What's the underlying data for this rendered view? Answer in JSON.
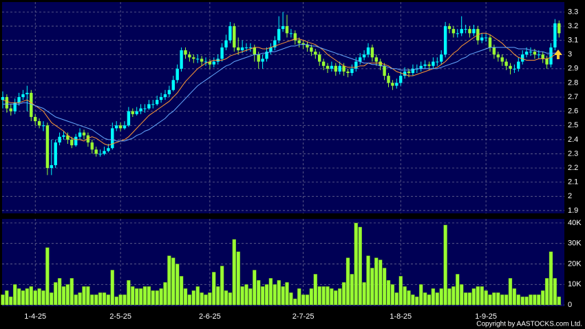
{
  "chart_data": [
    {
      "type": "candlestick",
      "up_color": "#00ffff",
      "down_color": "#99ff33",
      "open": [
        2.68,
        2.7,
        2.62,
        2.6,
        2.66,
        2.7,
        2.72,
        2.73,
        2.56,
        2.53,
        2.5,
        2.5,
        2.2,
        2.22,
        2.38,
        2.42,
        2.43,
        2.4,
        2.36,
        2.42,
        2.45,
        2.43,
        2.38,
        2.33,
        2.3,
        2.3,
        2.32,
        2.34,
        2.48,
        2.5,
        2.48,
        2.5,
        2.6,
        2.58,
        2.6,
        2.62,
        2.62,
        2.65,
        2.65,
        2.68,
        2.7,
        2.72,
        2.75,
        2.82,
        2.9,
        3.03,
        3.0,
        2.98,
        2.97,
        2.97,
        2.95,
        2.95,
        2.93,
        2.95,
        2.97,
        3.05,
        3.1,
        3.2,
        3.05,
        3.03,
        3.05,
        3.05,
        3.05,
        3.0,
        2.95,
        2.97,
        3.02,
        3.05,
        3.1,
        3.18,
        3.2,
        3.15,
        3.15,
        3.1,
        3.08,
        3.07,
        3.05,
        3.02,
        3.0,
        2.95,
        2.92,
        2.9,
        2.92,
        2.88,
        2.92,
        2.88,
        2.87,
        2.9,
        2.95,
        2.98,
        3.0,
        3.05,
        2.98,
        2.95,
        2.92,
        2.85,
        2.8,
        2.78,
        2.8,
        2.85,
        2.88,
        2.87,
        2.9,
        2.9,
        2.92,
        2.93,
        2.92,
        2.95,
        2.95,
        3.0,
        3.2,
        3.18,
        3.15,
        3.15,
        3.18,
        3.18,
        3.15,
        3.18,
        3.1,
        3.12,
        3.12,
        3.05,
        3.0,
        2.98,
        2.95,
        2.92,
        2.9,
        2.9,
        2.95,
        3.0,
        3.02,
        3.02,
        3.0,
        3.0,
        2.97,
        2.93,
        3.05,
        3.22
      ],
      "high": [
        2.74,
        2.72,
        2.65,
        2.69,
        2.73,
        2.75,
        2.78,
        2.75,
        2.58,
        2.55,
        2.53,
        2.52,
        2.4,
        2.4,
        2.45,
        2.46,
        2.45,
        2.42,
        2.44,
        2.48,
        2.47,
        2.45,
        2.4,
        2.35,
        2.33,
        2.35,
        2.37,
        2.52,
        2.53,
        2.52,
        2.53,
        2.63,
        2.62,
        2.63,
        2.65,
        2.65,
        2.68,
        2.68,
        2.71,
        2.73,
        2.75,
        2.78,
        2.85,
        2.93,
        3.05,
        3.05,
        3.02,
        3.0,
        3.0,
        2.99,
        2.98,
        2.97,
        2.98,
        3.0,
        3.08,
        3.14,
        3.23,
        3.22,
        3.12,
        3.1,
        3.08,
        3.08,
        3.07,
        3.02,
        3.0,
        3.05,
        3.08,
        3.13,
        3.27,
        3.3,
        3.28,
        3.18,
        3.17,
        3.12,
        3.1,
        3.09,
        3.07,
        3.04,
        3.02,
        2.97,
        2.94,
        2.95,
        2.94,
        2.95,
        2.94,
        2.9,
        2.93,
        2.98,
        3.01,
        3.03,
        3.08,
        3.07,
        3.0,
        2.97,
        2.94,
        2.87,
        2.82,
        2.83,
        2.88,
        2.91,
        2.9,
        2.93,
        2.93,
        2.95,
        2.96,
        2.95,
        2.98,
        2.98,
        3.03,
        3.23,
        3.22,
        3.2,
        3.18,
        3.27,
        3.21,
        3.2,
        3.21,
        3.2,
        3.15,
        3.15,
        3.14,
        3.07,
        3.02,
        3.0,
        2.97,
        2.94,
        2.93,
        2.98,
        3.03,
        3.05,
        3.05,
        3.04,
        3.03,
        3.02,
        2.99,
        3.08,
        3.25,
        3.24
      ],
      "low": [
        2.62,
        2.59,
        2.57,
        2.58,
        2.64,
        2.68,
        2.6,
        2.53,
        2.5,
        2.48,
        2.46,
        2.15,
        2.15,
        2.2,
        2.36,
        2.4,
        2.37,
        2.34,
        2.35,
        2.4,
        2.4,
        2.35,
        2.3,
        2.28,
        2.28,
        2.29,
        2.31,
        2.33,
        2.46,
        2.46,
        2.47,
        2.49,
        2.56,
        2.57,
        2.58,
        2.59,
        2.61,
        2.62,
        2.64,
        2.66,
        2.68,
        2.7,
        2.74,
        2.8,
        2.88,
        2.97,
        2.95,
        2.94,
        2.94,
        2.92,
        2.92,
        2.9,
        2.91,
        2.93,
        2.95,
        3.03,
        3.08,
        3.02,
        3.0,
        3.01,
        3.02,
        3.02,
        2.95,
        2.9,
        2.9,
        2.95,
        3.0,
        3.03,
        3.08,
        3.16,
        3.12,
        3.12,
        3.07,
        3.05,
        3.04,
        3.02,
        2.99,
        2.97,
        2.92,
        2.89,
        2.87,
        2.88,
        2.85,
        2.86,
        2.85,
        2.84,
        2.85,
        2.88,
        2.93,
        2.96,
        2.98,
        2.95,
        2.92,
        2.89,
        2.82,
        2.77,
        2.75,
        2.76,
        2.78,
        2.83,
        2.84,
        2.85,
        2.87,
        2.88,
        2.9,
        2.89,
        2.9,
        2.92,
        2.93,
        2.98,
        3.15,
        3.12,
        3.12,
        3.13,
        3.15,
        3.12,
        3.13,
        3.07,
        3.08,
        3.09,
        3.02,
        2.97,
        2.95,
        2.92,
        2.89,
        2.86,
        2.87,
        2.88,
        2.93,
        2.98,
        2.99,
        2.97,
        2.97,
        2.94,
        2.9,
        2.91,
        3.03,
        3.12
      ],
      "close": [
        2.7,
        2.62,
        2.6,
        2.66,
        2.7,
        2.72,
        2.73,
        2.56,
        2.53,
        2.5,
        2.5,
        2.2,
        2.22,
        2.38,
        2.42,
        2.43,
        2.4,
        2.36,
        2.42,
        2.45,
        2.43,
        2.38,
        2.33,
        2.3,
        2.3,
        2.32,
        2.34,
        2.48,
        2.5,
        2.48,
        2.5,
        2.6,
        2.58,
        2.6,
        2.62,
        2.62,
        2.65,
        2.65,
        2.68,
        2.7,
        2.72,
        2.75,
        2.82,
        2.9,
        3.03,
        3.0,
        2.98,
        2.97,
        2.97,
        2.95,
        2.95,
        2.93,
        2.95,
        2.97,
        3.05,
        3.1,
        3.2,
        3.05,
        3.03,
        3.05,
        3.05,
        3.05,
        3.0,
        2.95,
        2.97,
        3.02,
        3.05,
        3.1,
        3.18,
        3.2,
        3.15,
        3.15,
        3.1,
        3.08,
        3.07,
        3.05,
        3.02,
        3.0,
        2.95,
        2.92,
        2.9,
        2.92,
        2.88,
        2.92,
        2.88,
        2.87,
        2.9,
        2.95,
        2.98,
        3.0,
        3.05,
        2.98,
        2.95,
        2.92,
        2.85,
        2.8,
        2.78,
        2.8,
        2.85,
        2.88,
        2.87,
        2.9,
        2.9,
        2.92,
        2.93,
        2.92,
        2.95,
        2.95,
        3.0,
        3.2,
        3.18,
        3.15,
        3.15,
        3.18,
        3.18,
        3.15,
        3.18,
        3.1,
        3.12,
        3.12,
        3.05,
        3.0,
        2.98,
        2.95,
        2.92,
        2.9,
        2.9,
        2.95,
        3.0,
        3.02,
        3.02,
        3.0,
        3.0,
        2.97,
        2.93,
        3.05,
        3.22,
        3.15
      ],
      "series": [
        {
          "color": "#ff9933",
          "values": [
            2.68,
            2.67,
            2.66,
            2.66,
            2.66,
            2.67,
            2.68,
            2.66,
            2.64,
            2.62,
            2.6,
            2.56,
            2.52,
            2.5,
            2.48,
            2.46,
            2.43,
            2.41,
            2.4,
            2.4,
            2.39,
            2.41,
            2.42,
            2.41,
            2.39,
            2.37,
            2.36,
            2.37,
            2.38,
            2.39,
            2.4,
            2.42,
            2.45,
            2.48,
            2.51,
            2.54,
            2.57,
            2.59,
            2.61,
            2.63,
            2.65,
            2.67,
            2.7,
            2.73,
            2.77,
            2.81,
            2.84,
            2.87,
            2.9,
            2.92,
            2.94,
            2.95,
            2.96,
            2.96,
            2.96,
            2.97,
            2.99,
            3.0,
            3.01,
            3.02,
            3.03,
            3.04,
            3.05,
            3.05,
            3.04,
            3.04,
            3.05,
            3.06,
            3.07,
            3.08,
            3.09,
            3.1,
            3.11,
            3.11,
            3.1,
            3.09,
            3.08,
            3.07,
            3.05,
            3.03,
            3.0,
            2.98,
            2.96,
            2.94,
            2.92,
            2.91,
            2.91,
            2.91,
            2.92,
            2.92,
            2.94,
            2.94,
            2.94,
            2.94,
            2.93,
            2.92,
            2.9,
            2.88,
            2.87,
            2.86,
            2.85,
            2.85,
            2.86,
            2.87,
            2.88,
            2.89,
            2.9,
            2.91,
            2.93,
            2.95,
            2.98,
            3.01,
            3.03,
            3.06,
            3.08,
            3.1,
            3.12,
            3.14,
            3.15,
            3.15,
            3.14,
            3.12,
            3.1,
            3.08,
            3.05,
            3.03,
            3.0,
            2.98,
            2.97,
            2.96,
            2.96,
            2.96,
            2.97,
            2.97,
            2.97,
            2.98,
            3.0,
            3.01
          ]
        },
        {
          "color": "#66aaff",
          "values": [
            2.65,
            2.65,
            2.65,
            2.65,
            2.65,
            2.66,
            2.66,
            2.65,
            2.64,
            2.63,
            2.62,
            2.6,
            2.58,
            2.56,
            2.55,
            2.54,
            2.53,
            2.52,
            2.51,
            2.5,
            2.49,
            2.48,
            2.47,
            2.45,
            2.43,
            2.41,
            2.4,
            2.4,
            2.39,
            2.39,
            2.39,
            2.4,
            2.41,
            2.43,
            2.44,
            2.46,
            2.47,
            2.49,
            2.51,
            2.53,
            2.55,
            2.58,
            2.6,
            2.63,
            2.66,
            2.69,
            2.72,
            2.75,
            2.78,
            2.8,
            2.82,
            2.84,
            2.86,
            2.88,
            2.9,
            2.92,
            2.93,
            2.95,
            2.96,
            2.97,
            2.98,
            2.99,
            3.0,
            3.0,
            3.01,
            3.01,
            3.02,
            3.02,
            3.03,
            3.04,
            3.05,
            3.06,
            3.06,
            3.07,
            3.07,
            3.07,
            3.06,
            3.06,
            3.05,
            3.04,
            3.03,
            3.02,
            3.01,
            3.0,
            2.99,
            2.98,
            2.97,
            2.96,
            2.95,
            2.94,
            2.94,
            2.93,
            2.93,
            2.92,
            2.92,
            2.91,
            2.9,
            2.9,
            2.89,
            2.89,
            2.89,
            2.89,
            2.9,
            2.9,
            2.9,
            2.9,
            2.9,
            2.9,
            2.91,
            2.92,
            2.93,
            2.94,
            2.95,
            2.97,
            2.98,
            3.0,
            3.01,
            3.02,
            3.03,
            3.04,
            3.05,
            3.05,
            3.05,
            3.05,
            3.05,
            3.05,
            3.05,
            3.04,
            3.04,
            3.04,
            3.03,
            3.03,
            3.02,
            3.02,
            3.01,
            3.01,
            3.01,
            3.02
          ]
        }
      ],
      "ylim": [
        1.88,
        3.37
      ],
      "yticks": [
        1.9,
        2,
        2.1,
        2.2,
        2.3,
        2.4,
        2.5,
        2.6,
        2.7,
        2.8,
        2.9,
        3,
        3.1,
        3.2,
        3.3
      ],
      "grid": true
    },
    {
      "type": "bar",
      "color": "#99ff33",
      "categories": [
        null,
        null,
        null,
        null,
        null,
        null,
        null,
        null,
        "1-4-25",
        null,
        null,
        null,
        null,
        null,
        null,
        null,
        null,
        null,
        null,
        null,
        null,
        null,
        null,
        null,
        null,
        null,
        null,
        null,
        null,
        "2-5-25",
        null,
        null,
        null,
        null,
        null,
        null,
        null,
        null,
        null,
        null,
        null,
        null,
        null,
        null,
        null,
        null,
        null,
        null,
        null,
        null,
        null,
        "2-6-25",
        null,
        null,
        null,
        null,
        null,
        null,
        null,
        null,
        null,
        null,
        null,
        null,
        null,
        null,
        null,
        null,
        null,
        null,
        null,
        null,
        null,
        null,
        "2-7-25",
        null,
        null,
        null,
        null,
        null,
        null,
        null,
        null,
        null,
        null,
        null,
        null,
        null,
        null,
        null,
        null,
        null,
        null,
        null,
        null,
        null,
        null,
        null,
        "1-8-25",
        null,
        null,
        null,
        null,
        null,
        null,
        null,
        null,
        null,
        null,
        null,
        null,
        null,
        null,
        null,
        null,
        null,
        null,
        null,
        null,
        "1-9-25",
        null,
        null,
        null,
        null,
        null,
        null,
        null,
        null,
        null,
        null,
        null,
        null,
        null,
        null,
        null,
        null,
        null,
        null
      ],
      "values": [
        5000,
        7000,
        4000,
        10000,
        8000,
        7000,
        8000,
        9000,
        7000,
        8000,
        7000,
        28000,
        6000,
        11000,
        13000,
        9000,
        10000,
        13000,
        5000,
        6000,
        9000,
        9000,
        5000,
        5000,
        6000,
        6000,
        5000,
        17000,
        4000,
        5000,
        5000,
        12000,
        9000,
        8000,
        8000,
        9000,
        9000,
        7000,
        7000,
        8000,
        11000,
        24000,
        23000,
        20000,
        14000,
        8000,
        5000,
        7000,
        9000,
        6000,
        5000,
        6000,
        16000,
        9000,
        19000,
        7000,
        6000,
        32000,
        26000,
        9000,
        10000,
        8000,
        17000,
        12000,
        9000,
        10000,
        13000,
        10000,
        12000,
        9000,
        11000,
        6000,
        3000,
        8000,
        5000,
        5000,
        8000,
        15000,
        9000,
        9000,
        9000,
        8000,
        7000,
        8000,
        11000,
        23000,
        15000,
        40000,
        38000,
        11000,
        24000,
        18000,
        23000,
        22000,
        18000,
        12000,
        10000,
        6000,
        14000,
        9000,
        7000,
        5000,
        4000,
        10000,
        6000,
        5000,
        8000,
        6000,
        8000,
        39000,
        8000,
        9000,
        15000,
        10000,
        6000,
        6000,
        8000,
        9000,
        9000,
        7000,
        5000,
        6000,
        6000,
        5000,
        5000,
        13000,
        8000,
        5000,
        4000,
        4000,
        5000,
        5000,
        5000,
        7000,
        13000,
        26000,
        13000,
        4000
      ],
      "ylim": [
        0,
        42000
      ],
      "yticks": [
        0,
        {
          "value": 10000,
          "label": "10K"
        },
        {
          "value": 20000,
          "label": "20K"
        },
        {
          "value": 30000,
          "label": "30K"
        },
        {
          "value": 40000,
          "label": "40K"
        }
      ],
      "grid": true
    }
  ],
  "copyright": "Copyright by AASTOCKS.com Ltd."
}
